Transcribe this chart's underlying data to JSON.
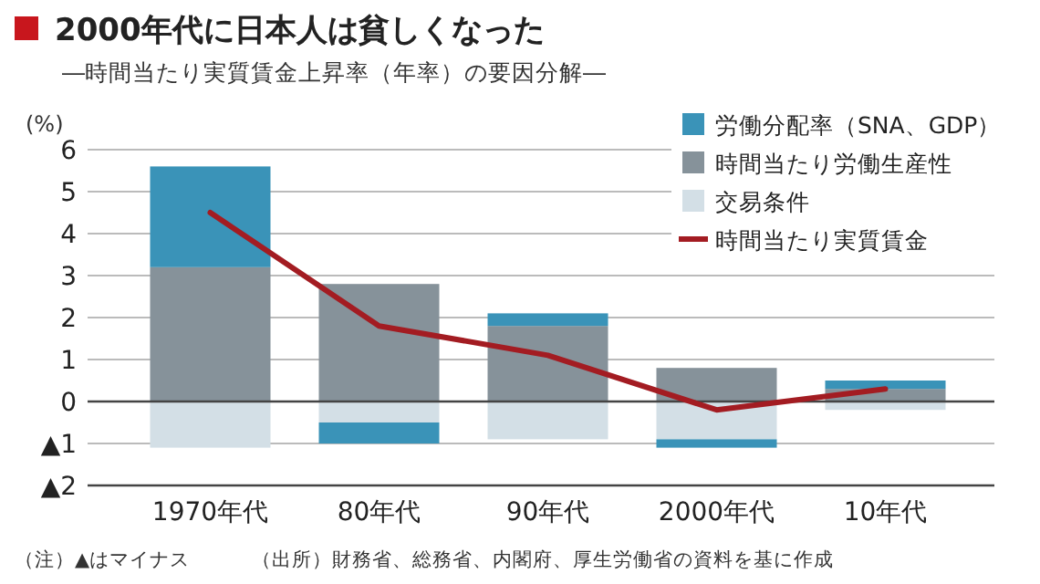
{
  "chart_data": {
    "type": "bar",
    "title": "2000年代に日本人は貧しくなった",
    "subtitle": "―時間当たり実質賃金上昇率（年率）の要因分解―",
    "ylabel": "(%)",
    "categories": [
      "1970年代",
      "80年代",
      "90年代",
      "2000年代",
      "10年代"
    ],
    "stacked": true,
    "series": [
      {
        "name": "交易条件",
        "color": "#d3dfe6",
        "values": [
          -1.1,
          -0.5,
          -0.9,
          -0.9,
          -0.2
        ]
      },
      {
        "name": "時間当たり労働生産性",
        "color": "#86929a",
        "values": [
          3.2,
          2.8,
          1.8,
          0.8,
          0.3
        ]
      },
      {
        "name": "労働分配率（SNA、GDP）",
        "color": "#3a93b8",
        "values": [
          2.4,
          -0.5,
          0.3,
          -0.2,
          0.2
        ]
      },
      {
        "name": "時間当たり実質賃金",
        "type": "line",
        "color": "#a31c22",
        "values": [
          4.5,
          1.8,
          1.1,
          -0.2,
          0.3
        ]
      }
    ],
    "ylim": [
      -2,
      6
    ],
    "yticks": [
      {
        "value": -2,
        "label": "▲2"
      },
      {
        "value": -1,
        "label": "▲1"
      },
      0,
      1,
      2,
      3,
      4,
      5,
      6
    ],
    "grid": "y",
    "legend": "top right",
    "annotations": [
      "（注）▲はマイナス",
      "（出所）財務省、総務省、内閣府、厚生労働省の資料を基に作成"
    ]
  }
}
